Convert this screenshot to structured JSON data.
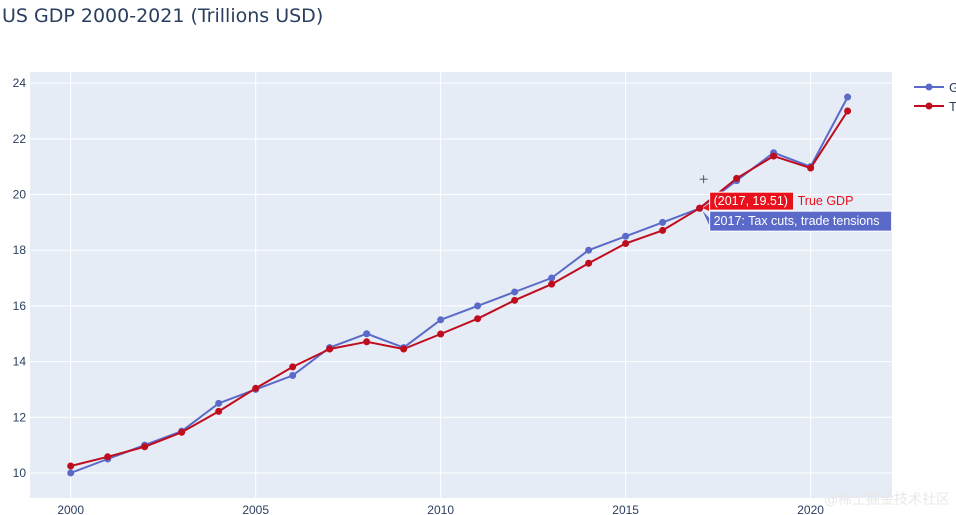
{
  "chart_data": {
    "type": "line",
    "title": "US GDP 2000-2021 (Trillions USD)",
    "xlabel": "",
    "ylabel": "",
    "xlim": [
      1998.9,
      2022.2
    ],
    "ylim": [
      9.1,
      24.4
    ],
    "x_ticks": [
      2000,
      2005,
      2010,
      2015,
      2020
    ],
    "y_ticks": [
      10,
      12,
      14,
      16,
      18,
      20,
      22,
      24
    ],
    "grid": true,
    "legend_position": "top-right",
    "x": [
      2000,
      2001,
      2002,
      2003,
      2004,
      2005,
      2006,
      2007,
      2008,
      2009,
      2010,
      2011,
      2012,
      2013,
      2014,
      2015,
      2016,
      2017,
      2018,
      2019,
      2020,
      2021
    ],
    "series": [
      {
        "name": "G",
        "color": "#5b6ac9",
        "values": [
          10.0,
          10.5,
          11.0,
          11.5,
          12.5,
          13.0,
          13.5,
          14.5,
          15.0,
          14.5,
          15.5,
          16.0,
          16.5,
          17.0,
          18.0,
          18.5,
          19.0,
          19.5,
          20.5,
          21.5,
          21.0,
          23.5
        ]
      },
      {
        "name": "T",
        "color": "#c00d1e",
        "values": [
          10.25,
          10.58,
          10.94,
          11.46,
          12.21,
          13.04,
          13.81,
          14.45,
          14.71,
          14.45,
          14.99,
          15.54,
          16.2,
          16.78,
          17.53,
          18.24,
          18.71,
          19.51,
          20.58,
          21.38,
          20.95,
          23.0
        ]
      }
    ],
    "hover": {
      "x": 2017,
      "label_point": "(2017, 19.51)",
      "label_series": "True GDP",
      "label_annotation": "2017: Tax cuts, trade tensions",
      "point_color": "#e8101a",
      "annotation_color": "#5b6ac9"
    },
    "watermark": "@稀土掘金技术社区"
  }
}
